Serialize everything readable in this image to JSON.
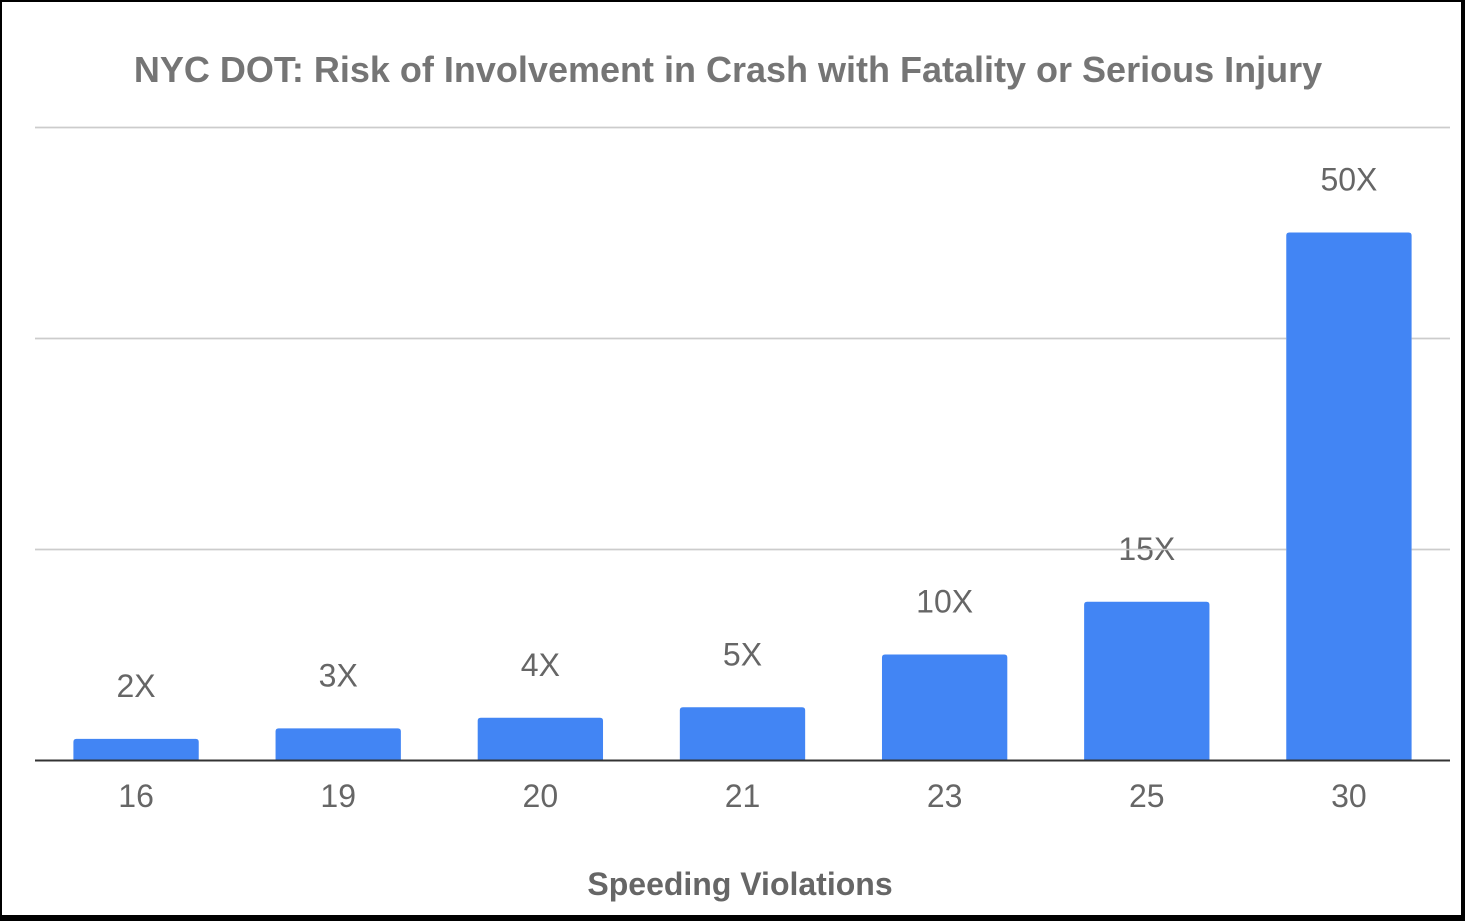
{
  "chart_data": {
    "type": "bar",
    "title": "NYC DOT: Risk of Involvement in Crash with Fatality or Serious Injury",
    "xlabel": "Speeding Violations",
    "ylabel": "",
    "categories": [
      "16",
      "19",
      "20",
      "21",
      "23",
      "25",
      "30"
    ],
    "values": [
      2,
      3,
      4,
      5,
      10,
      15,
      50
    ],
    "data_labels": [
      "2X",
      "3X",
      "4X",
      "5X",
      "10X",
      "15X",
      "50X"
    ],
    "ylim": [
      0,
      60
    ],
    "yticks": [
      0,
      20,
      40,
      60
    ],
    "ytick_labels_visible": false,
    "grid": true,
    "legend": "none",
    "bar_color": "#4285f4",
    "gridline_color": "#cccccc",
    "axis_color": "#333333",
    "text_color": "#666666"
  }
}
